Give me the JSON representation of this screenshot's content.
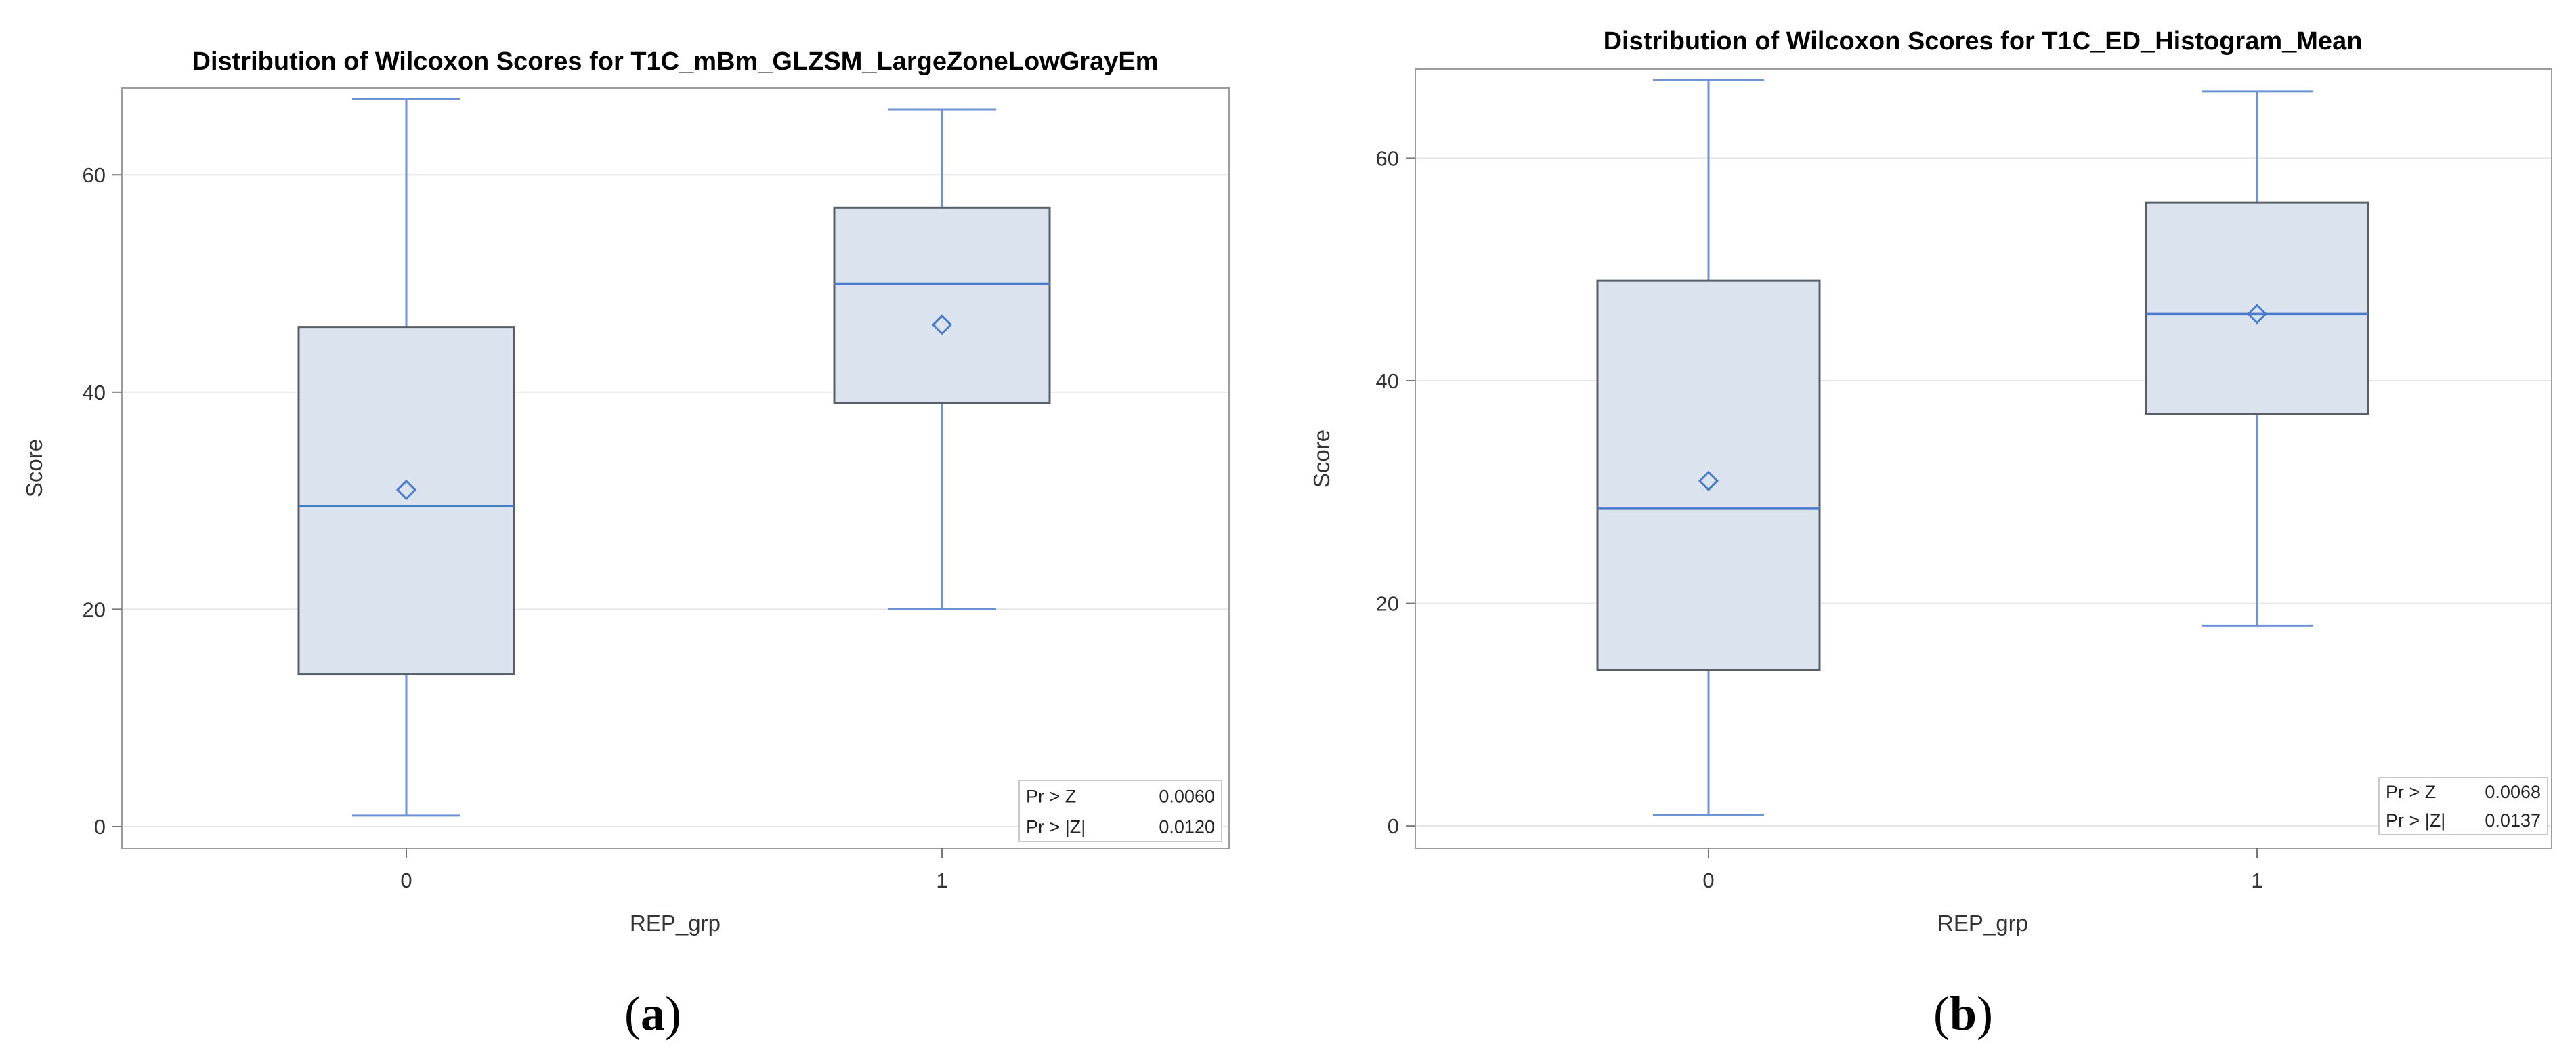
{
  "chart_data": [
    {
      "type": "box",
      "panel_label": "a",
      "title": "Distribution of Wilcoxon Scores for T1C_mBm_GLZSM_LargeZoneLowGrayEm",
      "xlabel": "REP_grp",
      "ylabel": "Score",
      "ylim": [
        -2,
        68
      ],
      "yticks": [
        0,
        20,
        40,
        60
      ],
      "grid": "horizontal",
      "categories": [
        "0",
        "1"
      ],
      "boxes": [
        {
          "category": "0",
          "min": 1,
          "q1": 14,
          "median": 29.5,
          "q3": 46,
          "max": 67,
          "mean": 31
        },
        {
          "category": "1",
          "min": 20,
          "q1": 39,
          "median": 50,
          "q3": 57,
          "max": 66,
          "mean": 46.2
        }
      ],
      "stats": [
        {
          "label": "Pr > Z",
          "value": "0.0060"
        },
        {
          "label": "Pr > |Z|",
          "value": "0.0120"
        }
      ],
      "stats_placement": "bottom-right",
      "colors": {
        "box_fill": "#dae3ee",
        "box_edge": "#595f66",
        "whisker": "#6d93d4",
        "median": "#4a7acc",
        "mean": "#4a7acc",
        "grid": "#e6e6e6",
        "frame": "#9c9c9c"
      }
    },
    {
      "type": "box",
      "panel_label": "b",
      "title": "Distribution of Wilcoxon Scores for T1C_ED_Histogram_Mean",
      "xlabel": "REP_grp",
      "ylabel": "Score",
      "ylim": [
        -2,
        68
      ],
      "yticks": [
        0,
        20,
        40,
        60
      ],
      "grid": "horizontal",
      "categories": [
        "0",
        "1"
      ],
      "boxes": [
        {
          "category": "0",
          "min": 1,
          "q1": 14,
          "median": 28.5,
          "q3": 49,
          "max": 67,
          "mean": 31
        },
        {
          "category": "1",
          "min": 18,
          "q1": 37,
          "median": 46,
          "q3": 56,
          "max": 66,
          "mean": 46
        }
      ],
      "stats": [
        {
          "label": "Pr > Z",
          "value": "0.0068"
        },
        {
          "label": "Pr > |Z|",
          "value": "0.0137"
        }
      ],
      "stats_placement": "bottom-right",
      "colors": {
        "box_fill": "#dae3ee",
        "box_edge": "#595f66",
        "whisker": "#6d93d4",
        "median": "#4a7acc",
        "mean": "#4a7acc",
        "grid": "#e6e6e6",
        "frame": "#9c9c9c"
      }
    }
  ]
}
